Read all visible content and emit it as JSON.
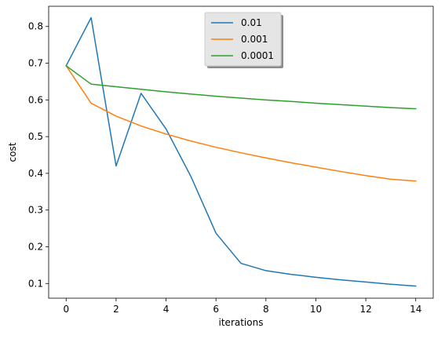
{
  "chart_data": {
    "type": "line",
    "xlabel": "iterations",
    "ylabel": "cost",
    "xlim": [
      -0.7,
      14.7
    ],
    "ylim": [
      0.06,
      0.855
    ],
    "xticks": [
      0,
      2,
      4,
      6,
      8,
      10,
      12,
      14
    ],
    "yticks": [
      0.1,
      0.2,
      0.3,
      0.4,
      0.5,
      0.6,
      0.7,
      0.8
    ],
    "grid": false,
    "legend_position": "upper-center",
    "x": [
      0,
      1,
      2,
      3,
      4,
      5,
      6,
      7,
      8,
      9,
      10,
      11,
      12,
      13,
      14
    ],
    "series": [
      {
        "name": "0.01",
        "color": "#1f77b4",
        "values": [
          0.693,
          0.824,
          0.42,
          0.618,
          0.521,
          0.391,
          0.237,
          0.155,
          0.135,
          0.125,
          0.117,
          0.11,
          0.104,
          0.098,
          0.093
        ]
      },
      {
        "name": "0.001",
        "color": "#ff7f0e",
        "values": [
          0.693,
          0.591,
          0.556,
          0.529,
          0.507,
          0.488,
          0.471,
          0.456,
          0.442,
          0.429,
          0.417,
          0.405,
          0.394,
          0.384,
          0.379
        ]
      },
      {
        "name": "0.0001",
        "color": "#2ca02c",
        "values": [
          0.693,
          0.643,
          0.636,
          0.629,
          0.622,
          0.616,
          0.61,
          0.605,
          0.6,
          0.596,
          0.591,
          0.587,
          0.583,
          0.579,
          0.576
        ]
      }
    ]
  }
}
